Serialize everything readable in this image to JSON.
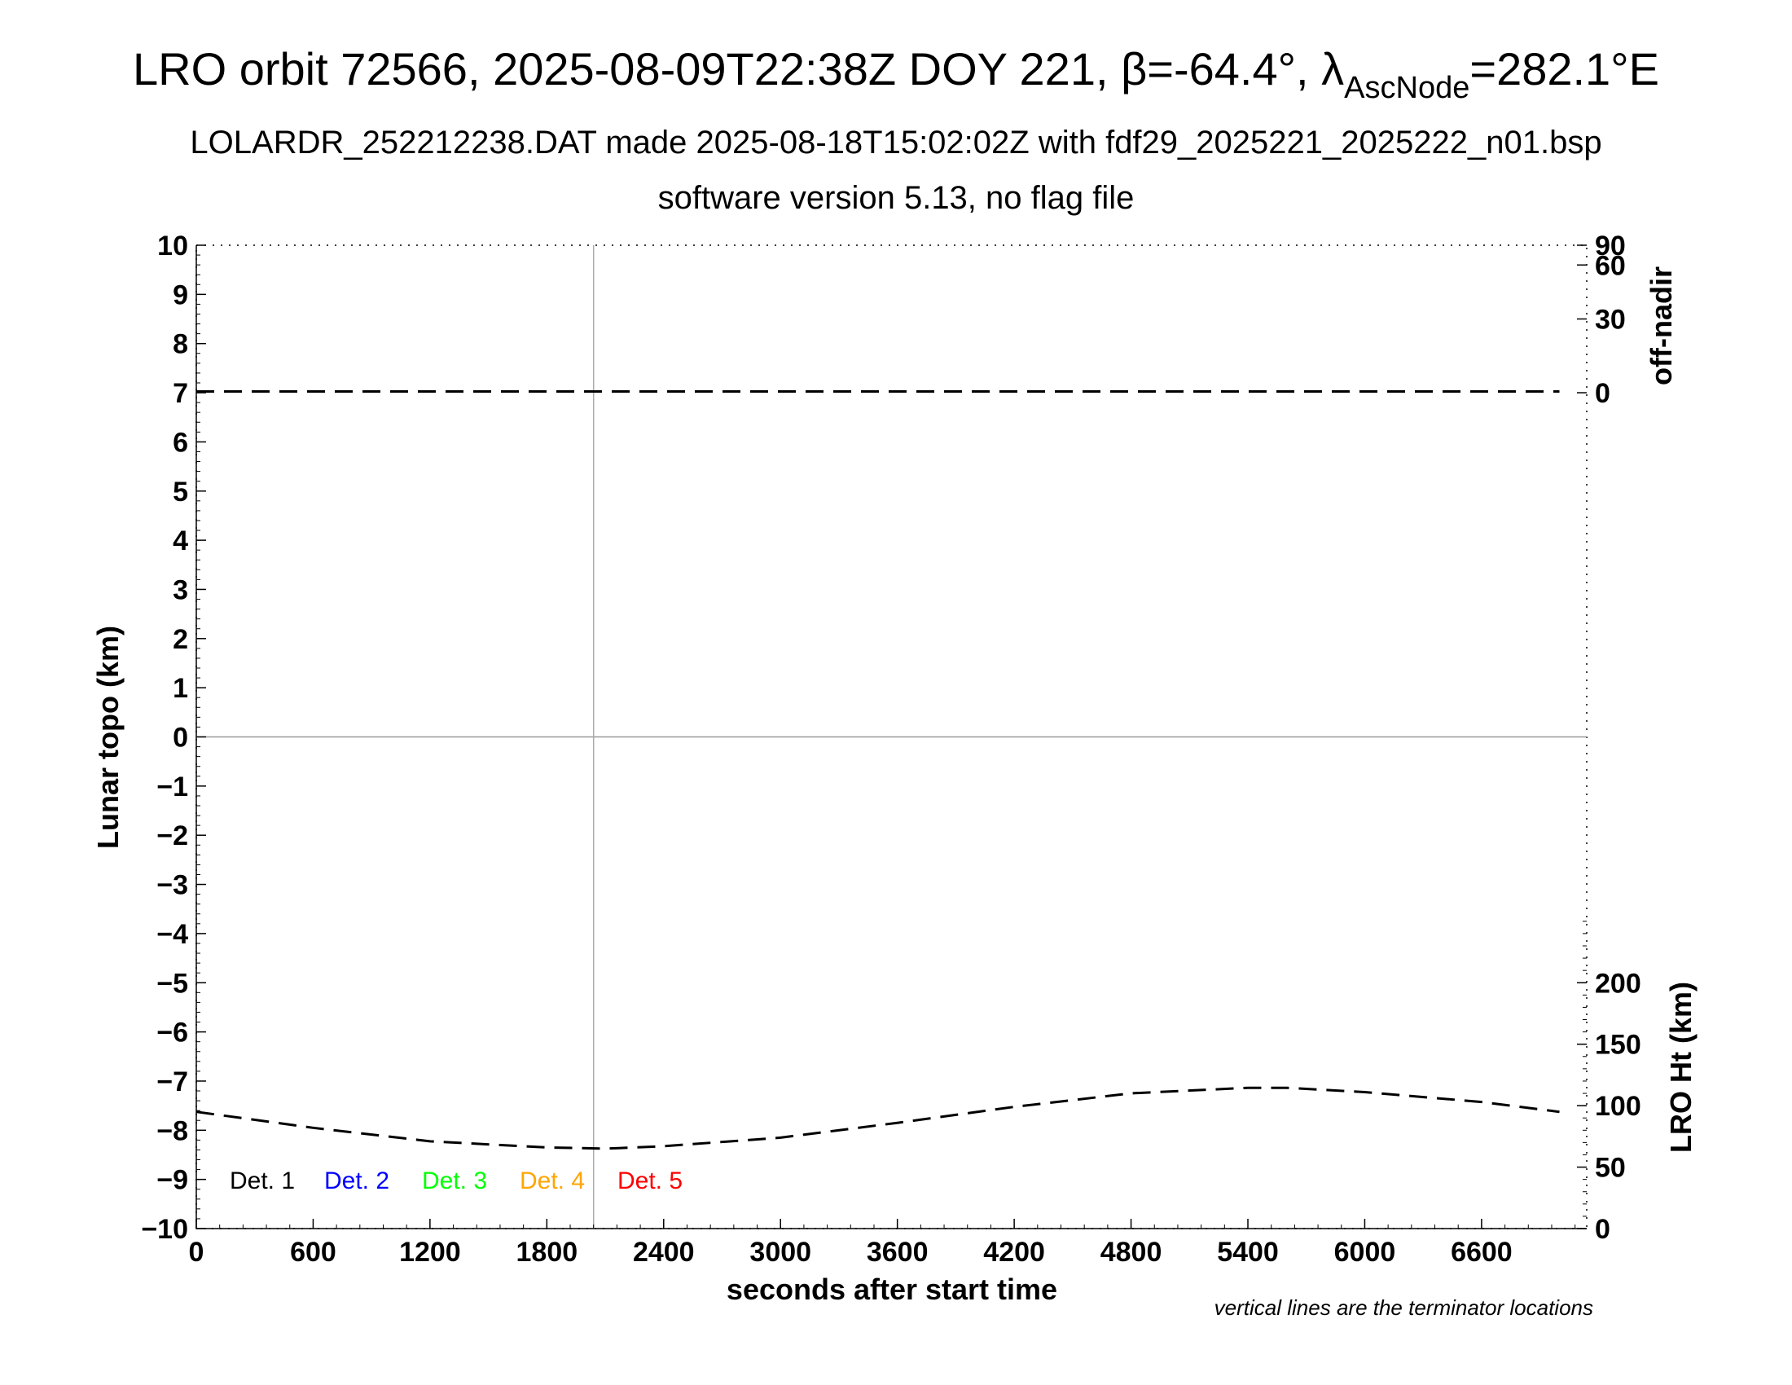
{
  "chart_data": {
    "type": "line",
    "title": "LRO orbit 72566, 2025-08-09T22:38Z DOY 221, β=-64.4°, λ",
    "title_subscript": "AscNode",
    "title_suffix": "=282.1°E",
    "subtitle_1": "LOLARDR_252212238.DAT made 2025-08-18T15:02:02Z with fdf29_2025221_2025222_n01.bsp",
    "subtitle_2": "software version 5.13, no flag file",
    "xlabel": "seconds after start time",
    "ylabel_left": "Lunar topo (km)",
    "ylabel_right_top": "off-nadir",
    "ylabel_right_bottom": "LRO Ht (km)",
    "footnote": "vertical lines are the terminator locations",
    "xlim": [
      0,
      7140
    ],
    "ylim_left": [
      -10,
      10
    ],
    "x_ticks": [
      "0",
      "600",
      "1200",
      "1800",
      "2400",
      "3000",
      "3600",
      "4200",
      "4800",
      "5400",
      "6000",
      "6600"
    ],
    "x_tick_values": [
      0,
      600,
      1200,
      1800,
      2400,
      3000,
      3600,
      4200,
      4800,
      5400,
      6000,
      6600
    ],
    "y_ticks_left": [
      "10",
      "9",
      "8",
      "7",
      "6",
      "5",
      "4",
      "3",
      "2",
      "1",
      "0",
      "−1",
      "−2",
      "−3",
      "−4",
      "−5",
      "−6",
      "−7",
      "−8",
      "−9",
      "−10"
    ],
    "y_tick_values_left": [
      10,
      9,
      8,
      7,
      6,
      5,
      4,
      3,
      2,
      1,
      0,
      -1,
      -2,
      -3,
      -4,
      -5,
      -6,
      -7,
      -8,
      -9,
      -10
    ],
    "right_top_axis": {
      "label": "off-nadir",
      "ticks": [
        "90",
        "60",
        "30",
        "0"
      ],
      "tick_values": [
        90,
        60,
        30,
        0
      ],
      "scale": "sine"
    },
    "right_bottom_axis": {
      "label": "LRO Ht (km)",
      "ticks": [
        "200",
        "150",
        "100",
        "50",
        "0"
      ],
      "tick_values": [
        200,
        150,
        100,
        50,
        0
      ],
      "range": [
        0,
        200
      ]
    },
    "terminator_lines_x": [
      2040
    ],
    "zero_line": true,
    "legend": [
      {
        "label": "Det. 1",
        "color": "#000000"
      },
      {
        "label": "Det. 2",
        "color": "#0000ff"
      },
      {
        "label": "Det. 3",
        "color": "#00ff00"
      },
      {
        "label": "Det. 4",
        "color": "#ffa500"
      },
      {
        "label": "Det. 5",
        "color": "#ff0000"
      }
    ],
    "legend_placement": "bottom-left",
    "series": [
      {
        "axis": "off-nadir",
        "style": "dashed",
        "color": "#000000",
        "x": [
          0,
          7000
        ],
        "y": [
          0.5,
          0.5
        ]
      },
      {
        "axis": "LRO Ht (km)",
        "style": "dashed",
        "color": "#000000",
        "x": [
          0,
          600,
          1200,
          1800,
          2100,
          2400,
          3000,
          3600,
          4200,
          4800,
          5400,
          5600,
          6000,
          6600,
          7000
        ],
        "y": [
          95,
          82,
          71,
          66,
          65,
          67,
          74,
          86,
          99,
          110,
          114.5,
          114.5,
          111,
          103,
          95
        ]
      }
    ]
  }
}
